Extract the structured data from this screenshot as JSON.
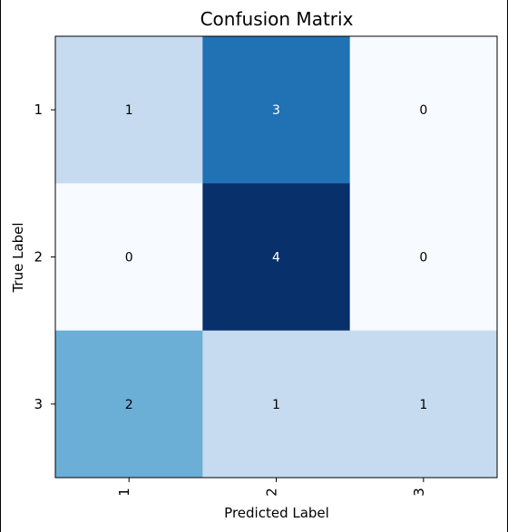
{
  "chart_data": {
    "type": "heatmap",
    "title": "Confusion Matrix",
    "xlabel": "Predicted Label",
    "ylabel": "True Label",
    "x_categories": [
      "1",
      "2",
      "3"
    ],
    "y_categories": [
      "1",
      "2",
      "3"
    ],
    "values": [
      [
        1,
        3,
        0
      ],
      [
        0,
        4,
        0
      ],
      [
        2,
        1,
        1
      ]
    ],
    "value_range": [
      0,
      4
    ],
    "colormap": "Blues",
    "colors": {
      "low": "#f7fbff",
      "mid_low": "#c6dbef",
      "mid": "#6baed6",
      "mid_high": "#2171b5",
      "high": "#08306b",
      "text_dark": "#000000",
      "text_light": "#ffffff"
    },
    "grid": false,
    "legend": "none"
  }
}
